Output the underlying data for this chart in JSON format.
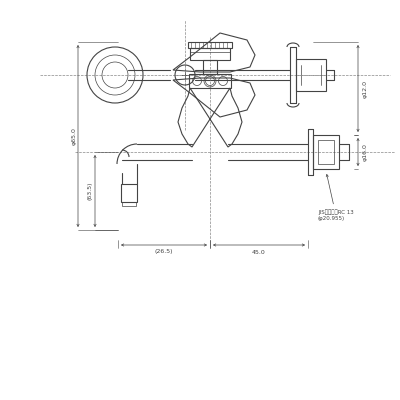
{
  "bg_color": "#ffffff",
  "line_color": "#444444",
  "dim_color": "#444444",
  "fig_width": 4.0,
  "fig_height": 4.0,
  "dpi": 100,
  "annotations": {
    "phi65": "φ65.0",
    "phi12": "φ12.0",
    "phi16": "φ16.0",
    "dim_63": "(63.5)",
    "dim_26": "(26.5)",
    "dim_45": "45.0",
    "jis_text": "JIS管用ネジRC 13",
    "jis_sub": "(φ20.955)"
  }
}
